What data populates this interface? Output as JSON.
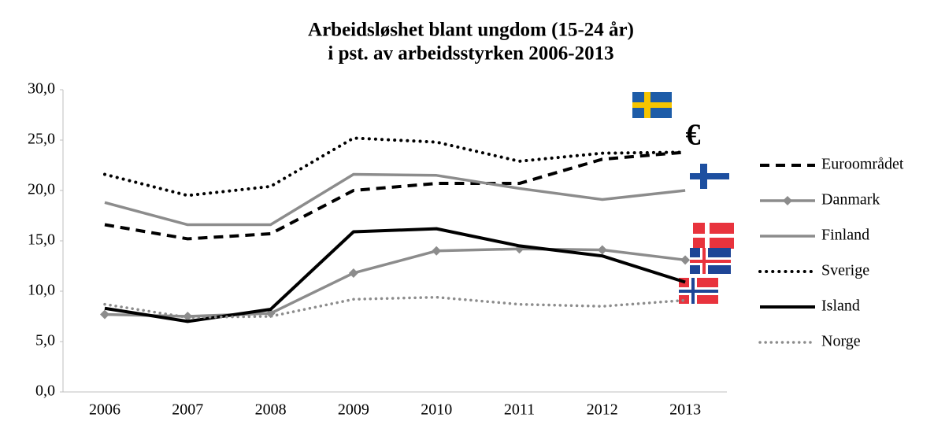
{
  "chart_data": {
    "type": "line",
    "title": [
      "Arbeidsløshet blant ungdom (15-24 år)",
      "i pst. av arbeidsstyrken 2006-2013"
    ],
    "categories": [
      "2006",
      "2007",
      "2008",
      "2009",
      "2010",
      "2011",
      "2012",
      "2013"
    ],
    "ylim": [
      0,
      30
    ],
    "yticks": [
      {
        "value": 0,
        "label": "0,0"
      },
      {
        "value": 5,
        "label": "5,0"
      },
      {
        "value": 10,
        "label": "10,0"
      },
      {
        "value": 15,
        "label": "15,0"
      },
      {
        "value": 20,
        "label": "20,0"
      },
      {
        "value": 25,
        "label": "25,0"
      },
      {
        "value": 30,
        "label": "30,0"
      }
    ],
    "grid": false,
    "legend": "right",
    "annotations": [
      "€"
    ],
    "series": [
      {
        "name": "Euroområdet",
        "color": "#000000",
        "dash": "dashed",
        "values": [
          16.6,
          15.2,
          15.7,
          20.0,
          20.7,
          20.7,
          23.1,
          23.8
        ]
      },
      {
        "name": "Danmark",
        "color": "#8c8c8c",
        "dash": "solid",
        "marker": "diamond",
        "values": [
          7.7,
          7.5,
          7.8,
          11.8,
          14.0,
          14.2,
          14.1,
          13.1
        ]
      },
      {
        "name": "Finland",
        "color": "#8c8c8c",
        "dash": "solid",
        "values": [
          18.8,
          16.6,
          16.6,
          21.6,
          21.5,
          20.2,
          19.1,
          20.0
        ]
      },
      {
        "name": "Sverige",
        "color": "#000000",
        "dash": "dotted",
        "values": [
          21.6,
          19.5,
          20.4,
          25.2,
          24.8,
          22.9,
          23.7,
          23.8
        ]
      },
      {
        "name": "Island",
        "color": "#000000",
        "dash": "solid",
        "values": [
          8.3,
          7.0,
          8.2,
          15.9,
          16.2,
          14.5,
          13.5,
          10.9
        ]
      },
      {
        "name": "Norge",
        "color": "#8c8c8c",
        "dash": "dotted",
        "values": [
          8.7,
          7.4,
          7.5,
          9.2,
          9.4,
          8.7,
          8.5,
          9.1
        ]
      }
    ]
  }
}
